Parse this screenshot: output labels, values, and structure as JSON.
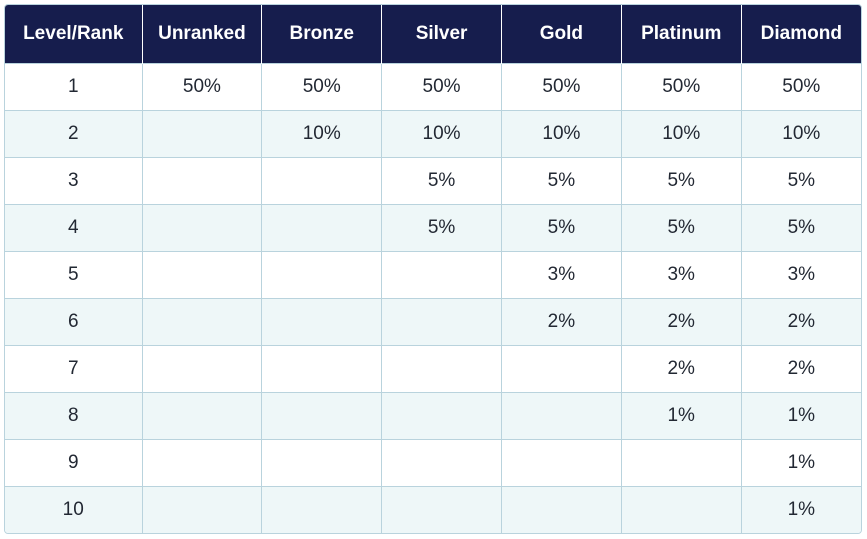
{
  "table": {
    "headers": [
      "Level/Rank",
      "Unranked",
      "Bronze",
      "Silver",
      "Gold",
      "Platinum",
      "Diamond"
    ],
    "rows": [
      [
        "1",
        "50%",
        "50%",
        "50%",
        "50%",
        "50%",
        "50%"
      ],
      [
        "2",
        "",
        "10%",
        "10%",
        "10%",
        "10%",
        "10%"
      ],
      [
        "3",
        "",
        "",
        "5%",
        "5%",
        "5%",
        "5%"
      ],
      [
        "4",
        "",
        "",
        "5%",
        "5%",
        "5%",
        "5%"
      ],
      [
        "5",
        "",
        "",
        "",
        "3%",
        "3%",
        "3%"
      ],
      [
        "6",
        "",
        "",
        "",
        "2%",
        "2%",
        "2%"
      ],
      [
        "7",
        "",
        "",
        "",
        "",
        "2%",
        "2%"
      ],
      [
        "8",
        "",
        "",
        "",
        "",
        "1%",
        "1%"
      ],
      [
        "9",
        "",
        "",
        "",
        "",
        "",
        "1%"
      ],
      [
        "10",
        "",
        "",
        "",
        "",
        "",
        "1%"
      ]
    ]
  },
  "colors": {
    "header_bg": "#161d4d",
    "header_text": "#ffffff",
    "stripe_bg": "#eef7f8",
    "border": "#b9d3dd"
  }
}
